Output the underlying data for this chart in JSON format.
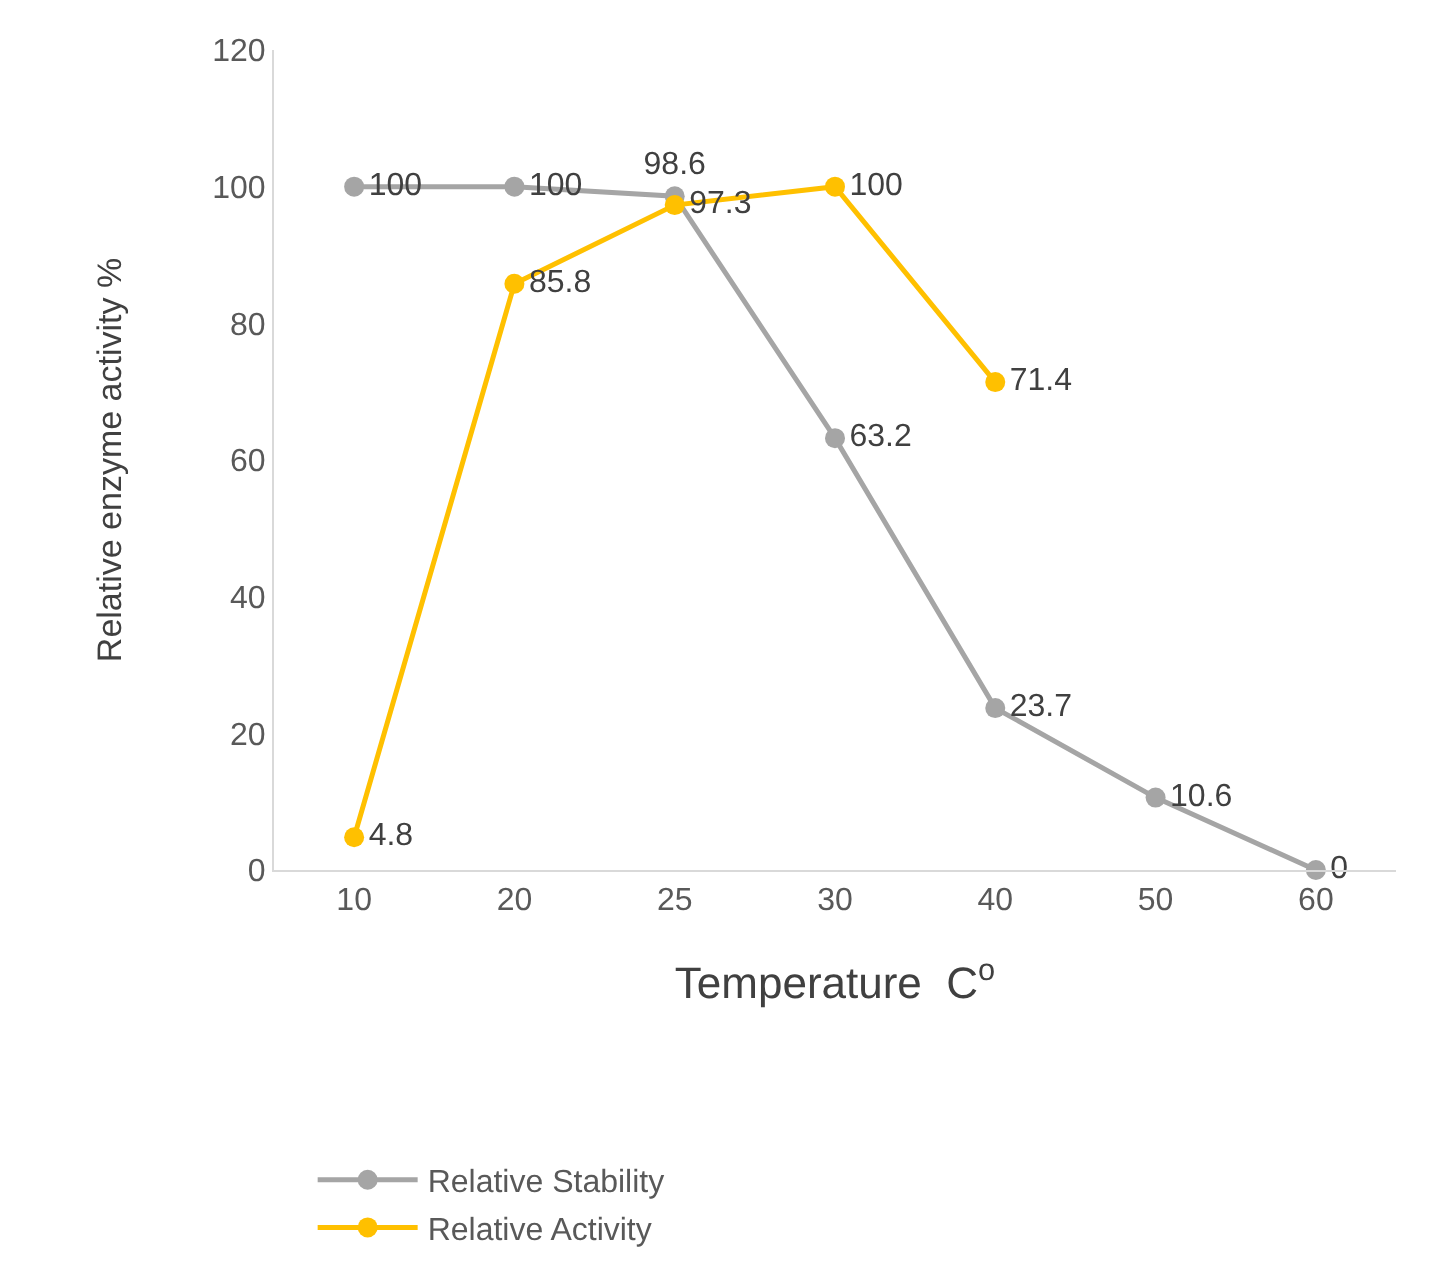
{
  "chart_data": {
    "type": "line",
    "xlabel": "Temperature  C$^{o}$",
    "ylabel": "Relative enzyme activity %",
    "categories": [
      "10",
      "20",
      "25",
      "30",
      "40",
      "50",
      "60"
    ],
    "series": [
      {
        "name": "Relative Stability",
        "color": "#a5a5a5",
        "values": [
          100,
          100,
          98.6,
          63.2,
          23.7,
          10.6,
          0
        ]
      },
      {
        "name": "Relative Activity",
        "color": "#ffc000",
        "values": [
          4.8,
          85.8,
          97.3,
          100,
          71.4,
          null,
          null
        ]
      }
    ],
    "ylim": [
      0,
      120
    ],
    "yticks": [
      0,
      20,
      40,
      60,
      80,
      100,
      120
    ],
    "grid": false,
    "legend": "bottom left",
    "marker": "circle",
    "line_style": "solid",
    "data_labels": true
  }
}
